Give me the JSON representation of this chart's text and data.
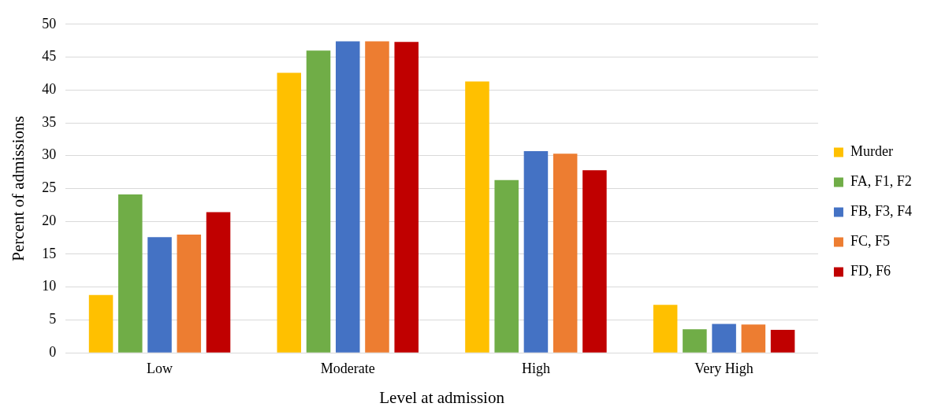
{
  "chart_data": {
    "type": "bar",
    "xlabel": "Level at admission",
    "ylabel": "Percent of admissions",
    "categories": [
      "Low",
      "Moderate",
      "High",
      "Very High"
    ],
    "series": [
      {
        "name": "Murder",
        "color": "#ffc000",
        "values": [
          8.8,
          42.6,
          41.3,
          7.3
        ]
      },
      {
        "name": "FA, F1, F2",
        "color": "#70ad47",
        "values": [
          24.1,
          46.0,
          26.3,
          3.6
        ]
      },
      {
        "name": "FB, F3, F4",
        "color": "#4472c4",
        "values": [
          17.6,
          47.4,
          30.7,
          4.4
        ]
      },
      {
        "name": "FC, F5",
        "color": "#ed7d31",
        "values": [
          18.0,
          47.4,
          30.3,
          4.3
        ]
      },
      {
        "name": "FD, F6",
        "color": "#c00000",
        "values": [
          21.4,
          47.3,
          27.8,
          3.5
        ]
      }
    ],
    "ylim": [
      0,
      50
    ],
    "yticks": [
      0,
      5,
      10,
      15,
      20,
      25,
      30,
      35,
      40,
      45,
      50
    ],
    "grid": "y",
    "legend": "right"
  }
}
